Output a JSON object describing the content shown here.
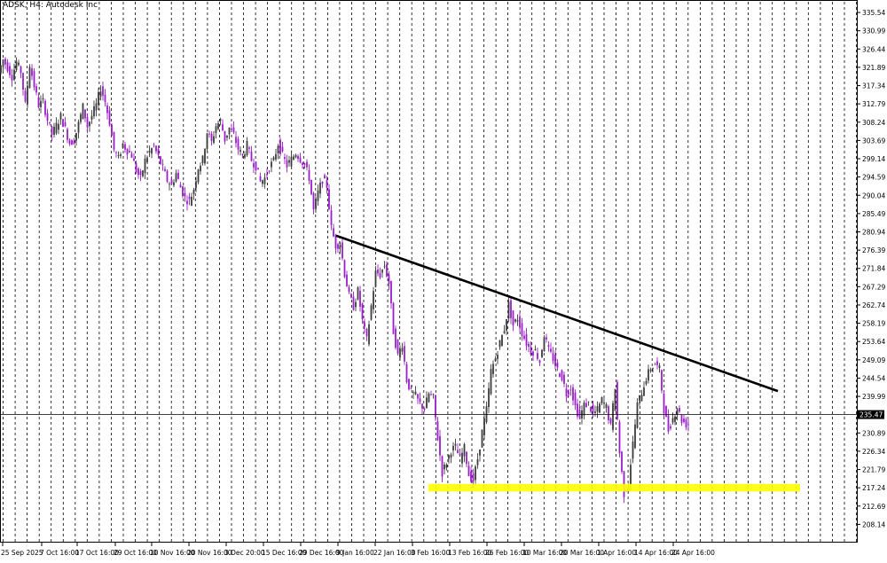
{
  "chart_data": {
    "type": "candlestick",
    "title": "ADSK, H4:  Autodesk Inc",
    "symbol": "ADSK",
    "timeframe": "H4",
    "ylim": [
      203.6,
      338.2
    ],
    "y_ticks": [
      "335.54",
      "330.99",
      "326.44",
      "321.89",
      "317.34",
      "312.79",
      "308.24",
      "303.69",
      "299.14",
      "294.59",
      "290.04",
      "285.49",
      "280.94",
      "276.39",
      "271.84",
      "267.29",
      "262.74",
      "258.19",
      "253.64",
      "249.09",
      "244.54",
      "239.99",
      "230.89",
      "226.34",
      "221.79",
      "217.24",
      "212.69",
      "208.14"
    ],
    "x_labels": [
      "25 Sep 2025",
      "7 Oct 16:00",
      "17 Oct 16:00",
      "29 Oct 16:00",
      "10 Nov 16:00",
      "20 Nov 16:00",
      "3 Dec 20:00",
      "15 Dec 16:00",
      "29 Dec 16:00",
      "9 Jan 16:00",
      "22 Jan 16:00",
      "3 Feb 16:00",
      "13 Feb 16:00",
      "26 Feb 16:00",
      "10 Mar 16:00",
      "20 Mar 16:00",
      "1 Apr 16:00",
      "14 Apr 16:00",
      "24 Apr 16:00"
    ],
    "current_price": "235.47",
    "grid": true,
    "price_path": [
      [
        0,
        320.5
      ],
      [
        5,
        323.8
      ],
      [
        10,
        321.8
      ],
      [
        15,
        319.6
      ],
      [
        20,
        323.2
      ],
      [
        25,
        320.8
      ],
      [
        30,
        312.5
      ],
      [
        35,
        322.6
      ],
      [
        40,
        317.3
      ],
      [
        45,
        312.5
      ],
      [
        50,
        313.4
      ],
      [
        55,
        308.8
      ],
      [
        60,
        305.2
      ],
      [
        65,
        307.4
      ],
      [
        70,
        309.7
      ],
      [
        75,
        306.5
      ],
      [
        80,
        303.1
      ],
      [
        85,
        303.7
      ],
      [
        90,
        307.8
      ],
      [
        95,
        312.1
      ],
      [
        100,
        307.2
      ],
      [
        105,
        309.8
      ],
      [
        110,
        312.5
      ],
      [
        115,
        316.8
      ],
      [
        120,
        313.4
      ],
      [
        125,
        308.2
      ],
      [
        130,
        301.4
      ],
      [
        135,
        299.1
      ],
      [
        140,
        302.8
      ],
      [
        145,
        301.2
      ],
      [
        150,
        300.0
      ],
      [
        155,
        296.2
      ],
      [
        160,
        294.1
      ],
      [
        165,
        298.7
      ],
      [
        170,
        300.9
      ],
      [
        175,
        302.2
      ],
      [
        180,
        299.5
      ],
      [
        185,
        296.7
      ],
      [
        190,
        293.8
      ],
      [
        195,
        292.6
      ],
      [
        200,
        295.5
      ],
      [
        205,
        292.0
      ],
      [
        210,
        289.4
      ],
      [
        215,
        288.5
      ],
      [
        220,
        291.7
      ],
      [
        225,
        297.0
      ],
      [
        230,
        298.9
      ],
      [
        235,
        305.8
      ],
      [
        240,
        303.2
      ],
      [
        245,
        307.4
      ],
      [
        250,
        308.6
      ],
      [
        255,
        303.9
      ],
      [
        260,
        306.8
      ],
      [
        265,
        305.0
      ],
      [
        270,
        301.6
      ],
      [
        275,
        299.7
      ],
      [
        280,
        302.5
      ],
      [
        285,
        298.8
      ],
      [
        290,
        297.3
      ],
      [
        295,
        293.4
      ],
      [
        300,
        294.3
      ],
      [
        305,
        297.0
      ],
      [
        310,
        298.6
      ],
      [
        315,
        302.9
      ],
      [
        320,
        299.9
      ],
      [
        325,
        297.4
      ],
      [
        330,
        299.0
      ],
      [
        335,
        300.6
      ],
      [
        340,
        299.1
      ],
      [
        345,
        297.6
      ],
      [
        350,
        294.4
      ],
      [
        355,
        286.2
      ],
      [
        360,
        290.7
      ],
      [
        365,
        294.0
      ],
      [
        370,
        292.4
      ],
      [
        375,
        281.9
      ],
      [
        380,
        277.5
      ],
      [
        385,
        278.2
      ],
      [
        390,
        270.5
      ],
      [
        395,
        265.1
      ],
      [
        400,
        262.4
      ],
      [
        405,
        266.2
      ],
      [
        410,
        258.8
      ],
      [
        415,
        254.0
      ],
      [
        420,
        262.5
      ],
      [
        425,
        270.8
      ],
      [
        430,
        270.3
      ],
      [
        435,
        272.6
      ],
      [
        440,
        268.2
      ],
      [
        445,
        256.2
      ],
      [
        450,
        250.1
      ],
      [
        455,
        253.1
      ],
      [
        460,
        244.1
      ],
      [
        465,
        241.0
      ],
      [
        470,
        240.1
      ],
      [
        475,
        238.1
      ],
      [
        480,
        237.0
      ],
      [
        485,
        240.6
      ],
      [
        490,
        239.6
      ],
      [
        495,
        229.6
      ],
      [
        500,
        221.0
      ],
      [
        505,
        223.6
      ],
      [
        510,
        226.6
      ],
      [
        515,
        227.3
      ],
      [
        520,
        224.4
      ],
      [
        525,
        227.1
      ],
      [
        530,
        220.5
      ],
      [
        535,
        219.1
      ],
      [
        540,
        224.5
      ],
      [
        545,
        231.1
      ],
      [
        550,
        236.7
      ],
      [
        555,
        246.3
      ],
      [
        560,
        249.5
      ],
      [
        565,
        253.3
      ],
      [
        570,
        256.8
      ],
      [
        575,
        262.9
      ],
      [
        580,
        257.7
      ],
      [
        585,
        259.5
      ],
      [
        590,
        255.9
      ],
      [
        595,
        253.3
      ],
      [
        600,
        251.2
      ],
      [
        605,
        251.3
      ],
      [
        610,
        248.7
      ],
      [
        615,
        255.4
      ],
      [
        620,
        251.4
      ],
      [
        625,
        249.4
      ],
      [
        630,
        246.6
      ],
      [
        635,
        244.8
      ],
      [
        640,
        240.7
      ],
      [
        645,
        242.3
      ],
      [
        650,
        237.5
      ],
      [
        655,
        234.6
      ],
      [
        660,
        237.8
      ],
      [
        665,
        238.2
      ],
      [
        670,
        235.5
      ],
      [
        675,
        236.6
      ],
      [
        680,
        239.1
      ],
      [
        685,
        237.3
      ],
      [
        690,
        232.4
      ],
      [
        695,
        242.5
      ],
      [
        700,
        226.0
      ],
      [
        705,
        215.8
      ],
      [
        710,
        218.7
      ],
      [
        715,
        228.2
      ],
      [
        720,
        237.9
      ],
      [
        725,
        241.1
      ],
      [
        730,
        244.6
      ],
      [
        735,
        247.0
      ],
      [
        740,
        248.0
      ],
      [
        745,
        246.7
      ],
      [
        750,
        236.8
      ],
      [
        755,
        231.6
      ],
      [
        760,
        234.6
      ],
      [
        765,
        237.3
      ],
      [
        770,
        234.1
      ],
      [
        775,
        233.1
      ]
    ],
    "resistance_trendline": [
      [
        379,
        280.0
      ],
      [
        877,
        241.3
      ]
    ],
    "support_zone": [
      216.3,
      218.2
    ],
    "colors": {
      "bull_candle": "#3c3c3c",
      "bear_candle": "#9b1fc9",
      "trendline": "#000000",
      "support_zone": "#ffff00",
      "grid": "#000000",
      "background": "#ffffff"
    }
  }
}
